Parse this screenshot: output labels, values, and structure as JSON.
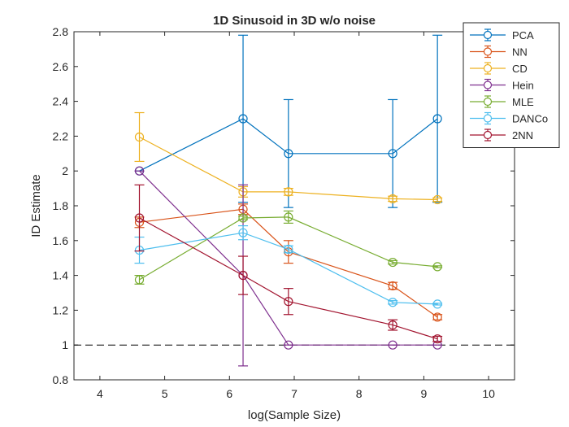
{
  "chart_data": {
    "type": "line",
    "title": "1D Sinusoid in 3D w/o noise",
    "xlabel": "log(Sample Size)",
    "ylabel": "ID Estimate",
    "xlim": [
      3.6,
      10.4
    ],
    "ylim": [
      0.8,
      2.8
    ],
    "xticks": [
      4,
      5,
      6,
      7,
      8,
      9,
      10
    ],
    "yticks": [
      0.8,
      1,
      1.2,
      1.4,
      1.6,
      1.8,
      2,
      2.2,
      2.4,
      2.6,
      2.8
    ],
    "x": [
      4.61,
      6.21,
      6.91,
      8.52,
      9.21
    ],
    "grid": false,
    "legend_position": "top-right outside",
    "reference_line": {
      "y": 1,
      "style": "dashed",
      "color": "#000000"
    },
    "series": [
      {
        "name": "PCA",
        "color": "#0072BD",
        "values": [
          2.0,
          2.3,
          2.1,
          2.1,
          2.3
        ],
        "errors": [
          0.0,
          0.48,
          0.31,
          0.31,
          0.48
        ]
      },
      {
        "name": "NN",
        "color": "#D95319",
        "values": [
          1.705,
          1.78,
          1.535,
          1.34,
          1.16
        ],
        "errors": [
          0.03,
          0.03,
          0.065,
          0.02,
          0.015
        ]
      },
      {
        "name": "CD",
        "color": "#EDB120",
        "values": [
          2.195,
          1.88,
          1.88,
          1.84,
          1.835
        ],
        "errors": [
          0.14,
          0.03,
          0.02,
          0.015,
          0.01
        ]
      },
      {
        "name": "Hein",
        "color": "#7E2F8E",
        "values": [
          2.0,
          1.4,
          1.0,
          1.0,
          1.0
        ],
        "errors": [
          0.0,
          0.52,
          0.0,
          0.0,
          0.0
        ]
      },
      {
        "name": "MLE",
        "color": "#77AC30",
        "values": [
          1.375,
          1.73,
          1.735,
          1.475,
          1.45
        ],
        "errors": [
          0.025,
          0.01,
          0.035,
          0.01,
          0.005
        ]
      },
      {
        "name": "DANCo",
        "color": "#4DBEEE",
        "values": [
          1.545,
          1.645,
          1.55,
          1.245,
          1.235
        ],
        "errors": [
          0.075,
          0.04,
          0.02,
          0.01,
          0.005
        ]
      },
      {
        "name": "2NN",
        "color": "#A2142F",
        "values": [
          1.73,
          1.4,
          1.25,
          1.115,
          1.035
        ],
        "errors": [
          0.19,
          0.11,
          0.075,
          0.03,
          0.015
        ]
      }
    ]
  }
}
